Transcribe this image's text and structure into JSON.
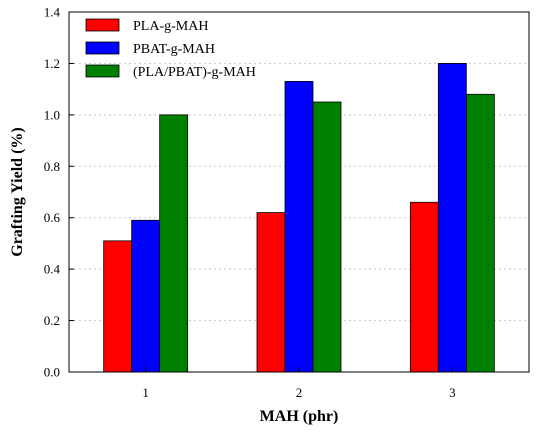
{
  "chart_data": {
    "type": "bar",
    "categories": [
      "1",
      "2",
      "3"
    ],
    "series": [
      {
        "name": "PLA-g-MAH",
        "values": [
          0.51,
          0.62,
          0.66
        ],
        "color": "#ff0000"
      },
      {
        "name": "PBAT-g-MAH",
        "values": [
          0.59,
          1.13,
          1.2
        ],
        "color": "#0000ff"
      },
      {
        "name": "(PLA/PBAT)-g-MAH",
        "values": [
          1.0,
          1.05,
          1.08
        ],
        "color": "#008000"
      }
    ],
    "xlabel": "MAH (phr)",
    "ylabel": "Grafting Yield (%)",
    "ylim": [
      0,
      1.4
    ],
    "yticks": [
      "0.0",
      "0.2",
      "0.4",
      "0.6",
      "0.8",
      "1.0",
      "1.2",
      "1.4"
    ],
    "grid": true,
    "legend_position": "top-left"
  }
}
